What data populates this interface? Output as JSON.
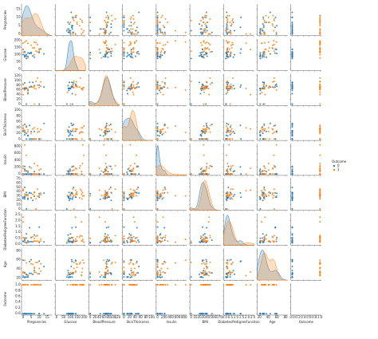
{
  "chart_data": {
    "type": "pairplot",
    "variables": [
      "Pregnancies",
      "Glucose",
      "BloodPressure",
      "SkinThickness",
      "Insulin",
      "BMI",
      "DiabetesPedigreeFunction",
      "Age",
      "Outcome"
    ],
    "limits": [
      [
        -1,
        18
      ],
      [
        -10,
        210
      ],
      [
        -6,
        128
      ],
      [
        -5,
        105
      ],
      [
        -40,
        880
      ],
      [
        -3,
        70
      ],
      [
        -0.1,
        2.6
      ],
      [
        15,
        85
      ],
      [
        -0.05,
        1.05
      ]
    ],
    "ticks": [
      [
        0,
        5,
        10,
        15
      ],
      [
        0,
        50,
        100,
        150,
        200
      ],
      [
        0,
        20,
        40,
        60,
        80,
        100,
        120
      ],
      [
        0,
        20,
        40,
        60,
        80,
        100
      ],
      [
        0,
        200,
        400,
        600,
        800
      ],
      [
        0,
        10,
        20,
        30,
        40,
        50,
        60,
        70
      ],
      [
        {
          "value": 0,
          "label": "0.0"
        },
        {
          "value": 0.5,
          "label": "0.5"
        },
        {
          "value": 1,
          "label": "1.0"
        },
        {
          "value": 1.5,
          "label": "1.5"
        },
        {
          "value": 2,
          "label": "2.0"
        },
        {
          "value": 2.5,
          "label": "2.5"
        }
      ],
      [
        20,
        40,
        60,
        80
      ],
      [
        {
          "value": 0,
          "label": "0.0"
        },
        {
          "value": 0.2,
          "label": "0.2"
        },
        {
          "value": 0.4,
          "label": "0.4"
        },
        {
          "value": 0.6,
          "label": "0.6"
        },
        {
          "value": 0.8,
          "label": "0.8"
        },
        {
          "value": 1,
          "label": "1.0"
        }
      ]
    ],
    "legend_title": "Outcome",
    "legend_position": "right",
    "series": [
      {
        "name": "0",
        "color": "#1f77b4",
        "values": [
          [
            1,
            85,
            66,
            29,
            0,
            26.6,
            0.351,
            31,
            0
          ],
          [
            1,
            89,
            66,
            23,
            94,
            28.1,
            0.167,
            21,
            0
          ],
          [
            5,
            116,
            74,
            0,
            0,
            25.6,
            0.201,
            30,
            0
          ],
          [
            10,
            115,
            0,
            0,
            0,
            35.3,
            0.134,
            29,
            0
          ],
          [
            4,
            110,
            92,
            0,
            0,
            37.6,
            0.191,
            30,
            0
          ],
          [
            10,
            139,
            80,
            0,
            0,
            27.1,
            1.441,
            57,
            0
          ],
          [
            1,
            97,
            66,
            15,
            140,
            23.2,
            0.487,
            22,
            0
          ],
          [
            5,
            109,
            75,
            26,
            0,
            36.0,
            0.546,
            60,
            0
          ],
          [
            3,
            88,
            58,
            11,
            54,
            24.8,
            0.267,
            22,
            0
          ],
          [
            6,
            92,
            92,
            0,
            0,
            19.9,
            0.188,
            28,
            0
          ],
          [
            2,
            90,
            68,
            42,
            0,
            38.2,
            0.503,
            27,
            0
          ],
          [
            4,
            111,
            72,
            47,
            207,
            37.1,
            1.39,
            56,
            0
          ],
          [
            3,
            113,
            44,
            13,
            0,
            22.4,
            0.14,
            22,
            0
          ],
          [
            2,
            74,
            0,
            0,
            0,
            0.0,
            0.102,
            22,
            0
          ],
          [
            7,
            83,
            78,
            26,
            71,
            29.3,
            0.767,
            36,
            0
          ],
          [
            0,
            101,
            65,
            28,
            0,
            24.6,
            0.237,
            22,
            0
          ],
          [
            1,
            122,
            90,
            51,
            220,
            49.7,
            0.325,
            31,
            0
          ],
          [
            13,
            106,
            72,
            54,
            0,
            36.6,
            0.178,
            45,
            0
          ],
          [
            2,
            100,
            66,
            20,
            90,
            32.9,
            0.867,
            28,
            0
          ],
          [
            0,
            137,
            84,
            27,
            0,
            27.3,
            0.231,
            59,
            0
          ]
        ]
      },
      {
        "name": "1",
        "color": "#ff7f0e",
        "values": [
          [
            6,
            148,
            72,
            35,
            0,
            33.6,
            0.627,
            50,
            1
          ],
          [
            8,
            183,
            64,
            0,
            0,
            23.3,
            0.672,
            32,
            1
          ],
          [
            0,
            137,
            40,
            35,
            168,
            43.1,
            2.288,
            33,
            1
          ],
          [
            3,
            78,
            50,
            32,
            88,
            31.0,
            0.248,
            26,
            1
          ],
          [
            2,
            197,
            70,
            45,
            543,
            30.5,
            0.158,
            53,
            1
          ],
          [
            8,
            125,
            96,
            0,
            0,
            0.0,
            0.232,
            54,
            1
          ],
          [
            7,
            100,
            0,
            0,
            0,
            30.0,
            0.484,
            32,
            1
          ],
          [
            1,
            115,
            70,
            30,
            96,
            34.6,
            0.529,
            32,
            1
          ],
          [
            11,
            143,
            94,
            33,
            146,
            36.6,
            0.254,
            51,
            1
          ],
          [
            10,
            125,
            70,
            26,
            115,
            31.1,
            0.205,
            41,
            1
          ],
          [
            7,
            147,
            76,
            0,
            0,
            39.4,
            0.257,
            43,
            1
          ],
          [
            9,
            171,
            110,
            24,
            240,
            45.4,
            0.721,
            54,
            1
          ],
          [
            0,
            180,
            66,
            39,
            0,
            42.0,
            1.893,
            25,
            1
          ],
          [
            1,
            189,
            60,
            23,
            846,
            30.1,
            0.398,
            59,
            1
          ],
          [
            5,
            166,
            72,
            19,
            175,
            25.8,
            0.587,
            51,
            1
          ],
          [
            0,
            118,
            84,
            47,
            230,
            45.8,
            0.551,
            31,
            1
          ],
          [
            11,
            138,
            76,
            0,
            0,
            33.2,
            0.42,
            35,
            1
          ],
          [
            3,
            180,
            64,
            25,
            70,
            34.0,
            0.271,
            26,
            1
          ],
          [
            7,
            187,
            68,
            39,
            304,
            37.7,
            0.254,
            41,
            1
          ],
          [
            9,
            119,
            80,
            35,
            0,
            29.0,
            0.263,
            29,
            1
          ]
        ]
      }
    ]
  }
}
